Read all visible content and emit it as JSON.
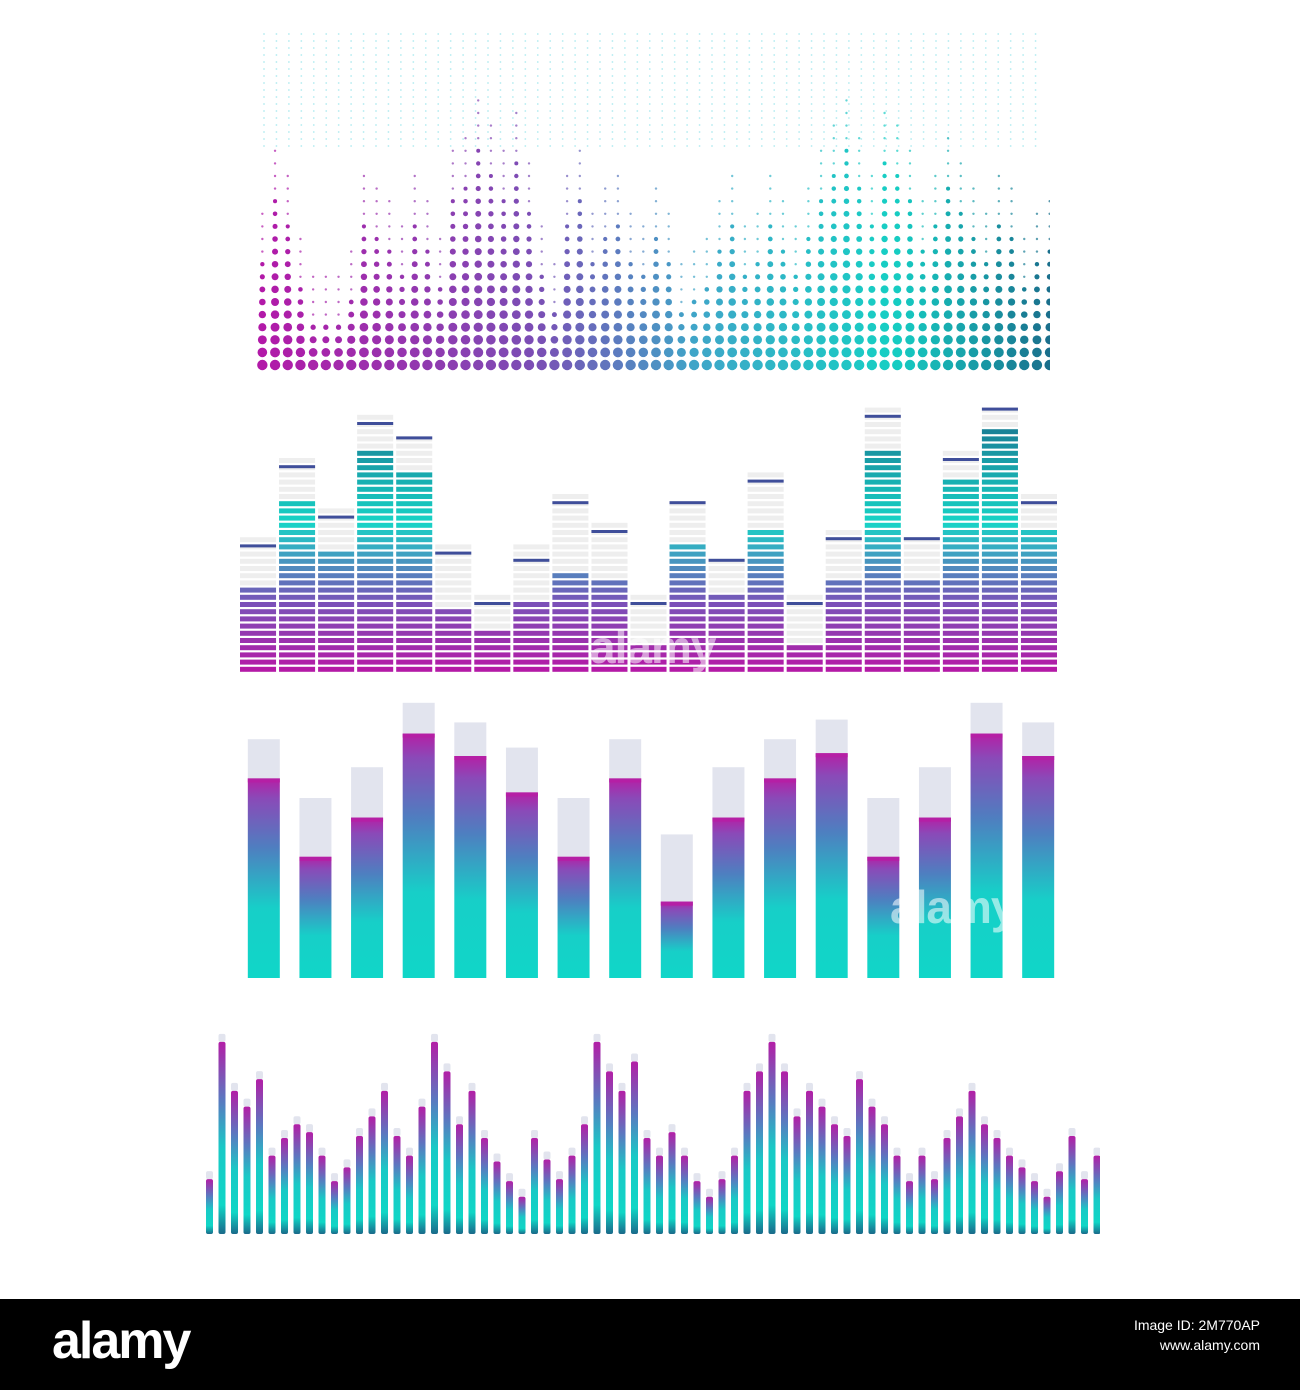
{
  "colors": {
    "magenta": "#b51fa8",
    "purple": "#7a52b8",
    "teal": "#10d6c6",
    "deep_teal": "#1a6a8a",
    "cap": "#e2e4ee",
    "cap_shadow": "#9aa7bd"
  },
  "watermark": {
    "text": "alamy"
  },
  "footer": {
    "logo": "alamy",
    "image_id_label": "Image ID: 2M770AP",
    "site": "www.alamy.com"
  },
  "eq_dots": {
    "levels": [
      9,
      14,
      12,
      7,
      4,
      4,
      4,
      6,
      12,
      11,
      10,
      8,
      12,
      10,
      7,
      14,
      15,
      18,
      16,
      14,
      17,
      13,
      8,
      5,
      12,
      14,
      9,
      11,
      12,
      9,
      8,
      11,
      9,
      5,
      6,
      7,
      10,
      12,
      8,
      9,
      12,
      10,
      8,
      11,
      14,
      16,
      18,
      15,
      12,
      17,
      16,
      14,
      10,
      12,
      15,
      13,
      11,
      9,
      12,
      11,
      7,
      9,
      10
    ]
  },
  "eq_segments": {
    "levels": [
      0.32,
      0.66,
      0.45,
      0.85,
      0.76,
      0.25,
      0.16,
      0.26,
      0.39,
      0.34,
      0.1,
      0.49,
      0.29,
      0.55,
      0.12,
      0.35,
      0.84,
      0.34,
      0.72,
      0.91,
      0.54
    ],
    "peaks": [
      0.45,
      0.77,
      0.56,
      0.91,
      0.87,
      0.43,
      0.24,
      0.41,
      0.61,
      0.52,
      0.24,
      0.61,
      0.4,
      0.71,
      0.24,
      0.48,
      0.95,
      0.48,
      0.79,
      0.98,
      0.62
    ],
    "ghosts": [
      0.52,
      0.82,
      0.61,
      0.97,
      0.9,
      0.49,
      0.3,
      0.48,
      0.67,
      0.58,
      0.3,
      0.66,
      0.44,
      0.77,
      0.3,
      0.55,
      0.99,
      0.52,
      0.83,
      0.99,
      0.67
    ]
  },
  "eq_bars": {
    "levels": [
      0.72,
      0.44,
      0.58,
      0.88,
      0.8,
      0.67,
      0.44,
      0.72,
      0.28,
      0.58,
      0.72,
      0.81,
      0.44,
      0.58,
      0.88,
      0.8
    ],
    "caps": [
      0.86,
      0.65,
      0.76,
      0.99,
      0.92,
      0.83,
      0.65,
      0.86,
      0.52,
      0.76,
      0.86,
      0.93,
      0.65,
      0.76,
      0.99,
      0.92
    ]
  },
  "eq_thin": {
    "levels": [
      0.28,
      0.98,
      0.73,
      0.65,
      0.79,
      0.4,
      0.49,
      0.56,
      0.52,
      0.4,
      0.27,
      0.34,
      0.5,
      0.6,
      0.73,
      0.5,
      0.4,
      0.65,
      0.98,
      0.83,
      0.56,
      0.73,
      0.49,
      0.37,
      0.27,
      0.19,
      0.49,
      0.38,
      0.28,
      0.4,
      0.56,
      0.98,
      0.83,
      0.73,
      0.88,
      0.49,
      0.4,
      0.52,
      0.4,
      0.27,
      0.19,
      0.28,
      0.4,
      0.73,
      0.83,
      0.98,
      0.83,
      0.6,
      0.73,
      0.65,
      0.56,
      0.5,
      0.79,
      0.65,
      0.56,
      0.4,
      0.27,
      0.4,
      0.28,
      0.49,
      0.6,
      0.73,
      0.56,
      0.49,
      0.4,
      0.34,
      0.27,
      0.19,
      0.32,
      0.5,
      0.28,
      0.4
    ]
  }
}
